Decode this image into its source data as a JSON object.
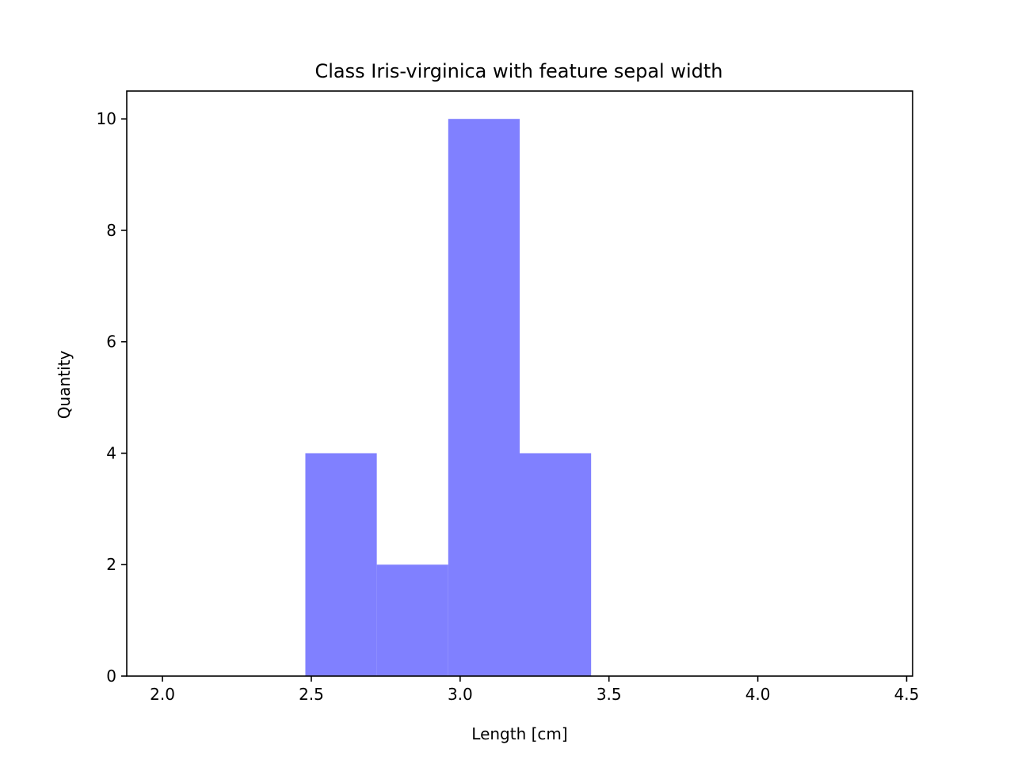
{
  "chart_data": {
    "type": "bar",
    "subtype": "histogram",
    "title": "Class Iris-virginica with feature sepal width",
    "xlabel": "Length [cm]",
    "ylabel": "Quantity",
    "xlim": [
      1.88,
      4.52
    ],
    "ylim": [
      0,
      10.5
    ],
    "xticks": [
      2.0,
      2.5,
      3.0,
      3.5,
      4.0,
      4.5
    ],
    "xtick_labels": [
      "2.0",
      "2.5",
      "3.0",
      "3.5",
      "4.0",
      "4.5"
    ],
    "yticks": [
      0,
      2,
      4,
      6,
      8,
      10
    ],
    "ytick_labels": [
      "0",
      "2",
      "4",
      "6",
      "8",
      "10"
    ],
    "bins": [
      {
        "start": 2.48,
        "end": 2.72,
        "count": 4
      },
      {
        "start": 2.72,
        "end": 2.96,
        "count": 2
      },
      {
        "start": 2.96,
        "end": 3.2,
        "count": 10
      },
      {
        "start": 3.2,
        "end": 3.44,
        "count": 4
      }
    ],
    "bar_color": "#8080ff",
    "grid": false,
    "legend": "none"
  }
}
